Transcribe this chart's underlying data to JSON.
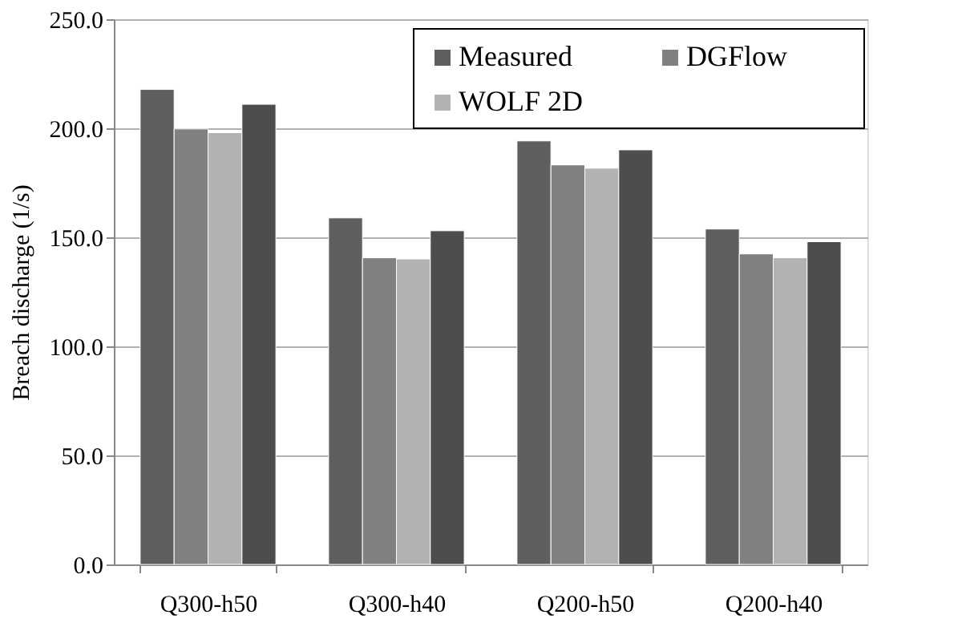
{
  "chart_data": {
    "type": "bar",
    "categories": [
      "Q300-h50",
      "Q300-h40",
      "Q200-h50",
      "Q200-h40"
    ],
    "series": [
      {
        "name": "Measured",
        "color": "#5f5f5f",
        "values": [
          217.8,
          158.9,
          194.2,
          153.8
        ]
      },
      {
        "name": "DGFlow",
        "color": "#808080",
        "values": [
          199.7,
          140.6,
          183.2,
          142.4
        ]
      },
      {
        "name": "WOLF 2D",
        "color": "#b2b2b2",
        "values": [
          198.0,
          140.1,
          181.7,
          140.6
        ]
      },
      {
        "color": "#4d4d4d",
        "values": [
          211.0,
          153.0,
          190.1,
          148.0
        ]
      }
    ],
    "ylabel": "Breach discharge (1/s)",
    "ylim": [
      0,
      250
    ],
    "yticks": [
      {
        "value": 0,
        "label": "0.0"
      },
      {
        "value": 50,
        "label": "50.0"
      },
      {
        "value": 100,
        "label": "100.0"
      },
      {
        "value": 150,
        "label": "150.0"
      },
      {
        "value": 200,
        "label": "200.0"
      },
      {
        "value": 250,
        "label": "250.0"
      }
    ],
    "grid": "y",
    "legend": "top right"
  }
}
